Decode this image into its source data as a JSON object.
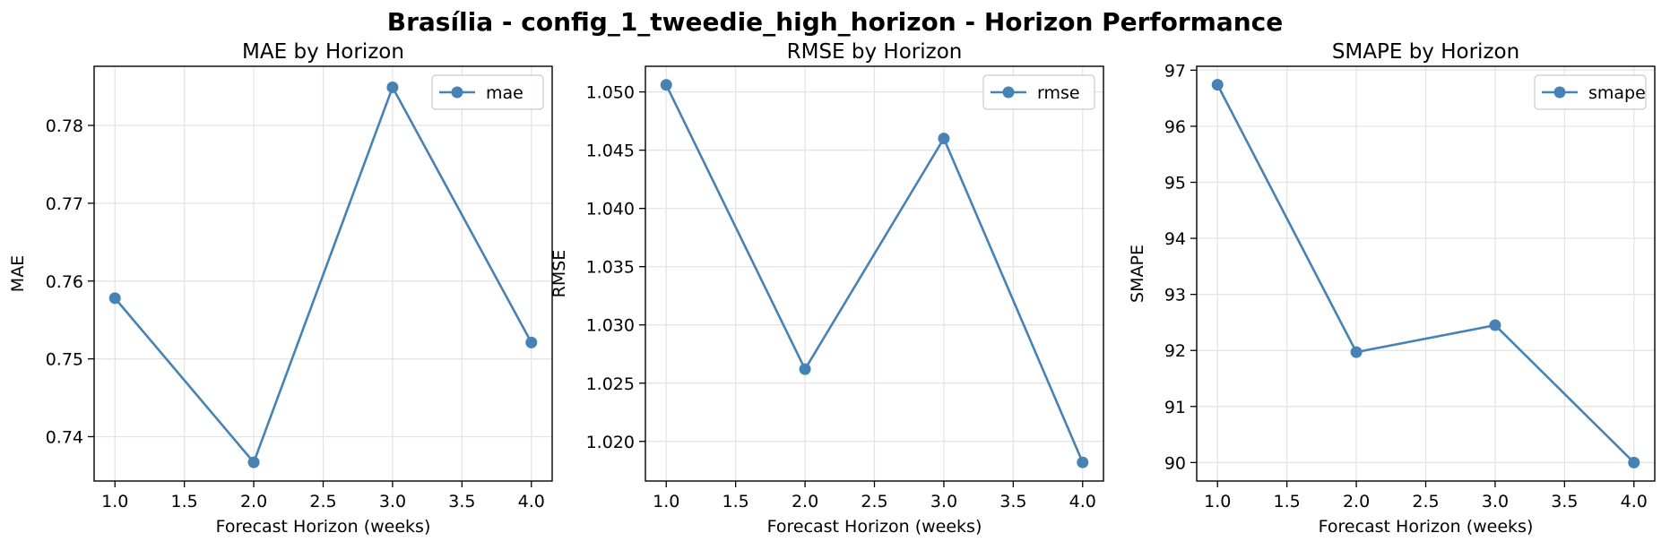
{
  "figure_title": "Brasília - config_1_tweedie_high_horizon - Horizon Performance",
  "colors": {
    "line": "#4682b4",
    "grid": "#e3e3e3",
    "axis": "#000000"
  },
  "chart_data": [
    {
      "type": "line",
      "title": "MAE by Horizon",
      "xlabel": "Forecast Horizon (weeks)",
      "ylabel": "MAE",
      "xlim": [
        0.85,
        4.15
      ],
      "ylim": [
        0.7343,
        0.7876
      ],
      "xticks": [
        "1.0",
        "1.5",
        "2.0",
        "2.5",
        "3.0",
        "3.5",
        "4.0"
      ],
      "yticks": [
        "0.74",
        "0.75",
        "0.76",
        "0.77",
        "0.78"
      ],
      "grid": true,
      "legend": "upper right",
      "series": [
        {
          "name": "mae",
          "x": [
            1,
            2,
            3,
            4
          ],
          "y": [
            0.7578,
            0.7367,
            0.7849,
            0.7521
          ]
        }
      ]
    },
    {
      "type": "line",
      "title": "RMSE by Horizon",
      "xlabel": "Forecast Horizon (weeks)",
      "ylabel": "RMSE",
      "xlim": [
        0.85,
        4.15
      ],
      "ylim": [
        1.0166,
        1.0522
      ],
      "xticks": [
        "1.0",
        "1.5",
        "2.0",
        "2.5",
        "3.0",
        "3.5",
        "4.0"
      ],
      "yticks": [
        "1.020",
        "1.025",
        "1.030",
        "1.035",
        "1.040",
        "1.045",
        "1.050"
      ],
      "grid": true,
      "legend": "upper right",
      "series": [
        {
          "name": "rmse",
          "x": [
            1,
            2,
            3,
            4
          ],
          "y": [
            1.0506,
            1.0262,
            1.046,
            1.0182
          ]
        }
      ]
    },
    {
      "type": "line",
      "title": "SMAPE by Horizon",
      "xlabel": "Forecast Horizon (weeks)",
      "ylabel": "SMAPE",
      "xlim": [
        0.85,
        4.15
      ],
      "ylim": [
        89.67,
        97.07
      ],
      "xticks": [
        "1.0",
        "1.5",
        "2.0",
        "2.5",
        "3.0",
        "3.5",
        "4.0"
      ],
      "yticks": [
        "90",
        "91",
        "92",
        "93",
        "94",
        "95",
        "96",
        "97"
      ],
      "grid": true,
      "legend": "upper right",
      "series": [
        {
          "name": "smape",
          "x": [
            1,
            2,
            3,
            4
          ],
          "y": [
            96.74,
            91.97,
            92.45,
            90.0
          ]
        }
      ]
    }
  ]
}
